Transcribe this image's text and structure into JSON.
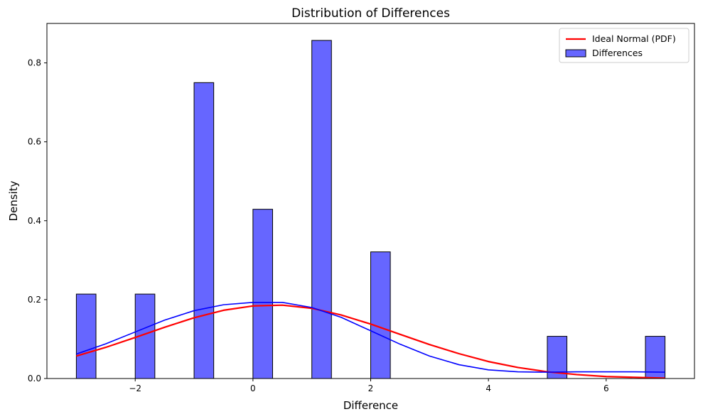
{
  "chart_data": {
    "type": "bar",
    "title": "Distribution of Differences",
    "xlabel": "Difference",
    "ylabel": "Density",
    "xlim": [
      -3.5,
      7.5
    ],
    "ylim": [
      0,
      0.9
    ],
    "xticks": [
      -2,
      0,
      2,
      4,
      6
    ],
    "xtick_labels": [
      "−2",
      "0",
      "2",
      "4",
      "6"
    ],
    "yticks": [
      0.0,
      0.2,
      0.4,
      0.6,
      0.8
    ],
    "ytick_labels": [
      "0.0",
      "0.2",
      "0.4",
      "0.6",
      "0.8"
    ],
    "bin_edges": [
      -3.0,
      -2.6667,
      -2.3333,
      -2.0,
      -1.6667,
      -1.3333,
      -1.0,
      -0.6667,
      -0.3333,
      0.0,
      0.3333,
      0.6667,
      1.0,
      1.3333,
      1.6667,
      2.0,
      2.3333,
      2.6667,
      3.0,
      3.3333,
      3.6667,
      4.0,
      4.3333,
      4.6667,
      5.0,
      5.3333,
      5.6667,
      6.0,
      6.3333,
      6.6667,
      7.0
    ],
    "densities": [
      0.214,
      0,
      0,
      0.214,
      0,
      0,
      0.75,
      0,
      0,
      0.429,
      0,
      0,
      0.857,
      0,
      0,
      0.321,
      0,
      0,
      0,
      0,
      0,
      0,
      0,
      0,
      0.107,
      0,
      0,
      0,
      0,
      0.107
    ],
    "series": [
      {
        "name": "Ideal Normal (PDF)",
        "type": "line",
        "color": "#ff0000",
        "x": [
          -3.0,
          -2.5,
          -2.0,
          -1.5,
          -1.0,
          -0.5,
          0.0,
          0.5,
          1.0,
          1.5,
          2.0,
          2.5,
          3.0,
          3.5,
          4.0,
          4.5,
          5.0,
          5.5,
          6.0,
          6.5,
          7.0
        ],
        "y": [
          0.057,
          0.079,
          0.104,
          0.13,
          0.154,
          0.173,
          0.184,
          0.186,
          0.178,
          0.161,
          0.138,
          0.112,
          0.086,
          0.063,
          0.043,
          0.028,
          0.017,
          0.01,
          0.005,
          0.003,
          0.001
        ]
      },
      {
        "name": "KDE",
        "type": "line",
        "color": "#0000ff",
        "x": [
          -3.0,
          -2.5,
          -2.0,
          -1.5,
          -1.0,
          -0.5,
          0.0,
          0.5,
          1.0,
          1.5,
          2.0,
          2.5,
          3.0,
          3.5,
          4.0,
          4.5,
          5.0,
          5.5,
          6.0,
          6.5,
          7.0
        ],
        "y": [
          0.062,
          0.088,
          0.118,
          0.148,
          0.172,
          0.187,
          0.193,
          0.193,
          0.18,
          0.155,
          0.121,
          0.087,
          0.057,
          0.035,
          0.022,
          0.017,
          0.016,
          0.017,
          0.017,
          0.017,
          0.016
        ]
      }
    ],
    "bar_color": "#6666ff",
    "bar_edge_color": "#000000",
    "legend": {
      "placement": "top-right",
      "entries": [
        {
          "label": "Ideal Normal (PDF)",
          "kind": "line",
          "color": "#ff0000"
        },
        {
          "label": "Differences",
          "kind": "patch",
          "color": "#6666ff"
        }
      ]
    },
    "grid": false
  }
}
